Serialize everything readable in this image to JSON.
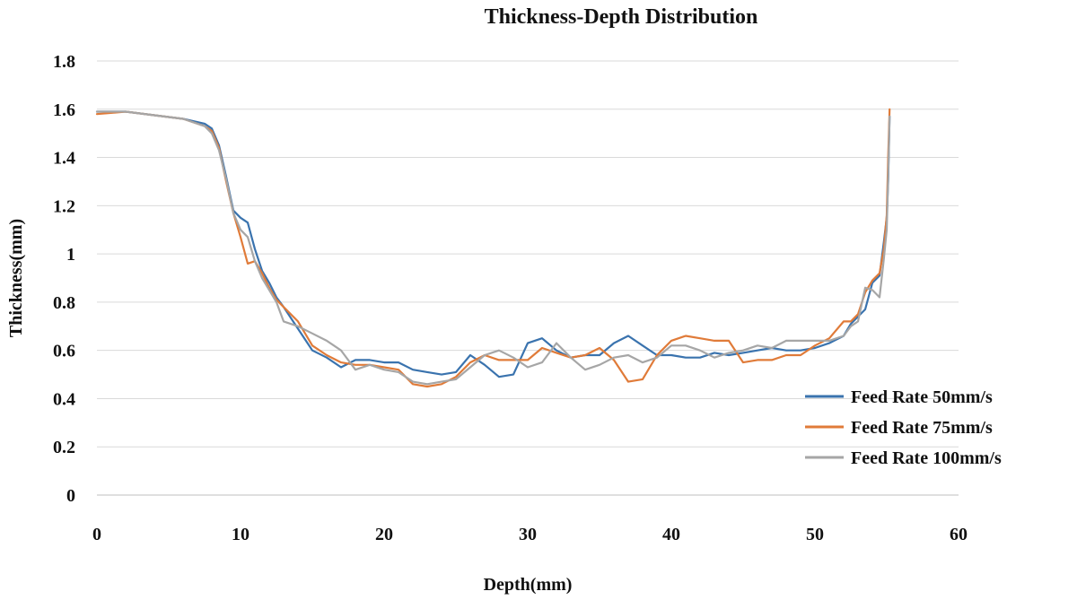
{
  "chart_data": {
    "type": "line",
    "title": "Thickness-Depth Distribution",
    "xlabel": "Depth(mm)",
    "ylabel": "Thickness(mm)",
    "xlim": [
      0,
      60
    ],
    "ylim": [
      0,
      1.8
    ],
    "xticks": [
      0,
      10,
      20,
      30,
      40,
      50,
      60
    ],
    "yticks": [
      0,
      0.2,
      0.4,
      0.6,
      0.8,
      1,
      1.2,
      1.4,
      1.6,
      1.8
    ],
    "xtick_labels": [
      "0",
      "10",
      "20",
      "30",
      "40",
      "50",
      "60"
    ],
    "ytick_labels": [
      "0",
      "0.2",
      "0.4",
      "0.6",
      "0.8",
      "1",
      "1.2",
      "1.4",
      "1.6",
      "1.8"
    ],
    "grid": true,
    "legend_position": "bottom-right",
    "series": [
      {
        "name": "Feed Rate 50mm/s",
        "color": "#3a73ae",
        "x": [
          0,
          2,
          4,
          6,
          7.5,
          8,
          8.5,
          9,
          9.5,
          10,
          10.5,
          11,
          11.5,
          12,
          12.5,
          13,
          14,
          15,
          16,
          17,
          18,
          19,
          20,
          21,
          22,
          23,
          24,
          25,
          26,
          27,
          28,
          29,
          30,
          31,
          32,
          33,
          34,
          35,
          36,
          37,
          38,
          39,
          40,
          41,
          42,
          43,
          44,
          45,
          46,
          47,
          48,
          49,
          50,
          51,
          52,
          52.5,
          53,
          53.5,
          54,
          54.5,
          54.8,
          55,
          55.1,
          55.2
        ],
        "values": [
          1.59,
          1.59,
          1.575,
          1.56,
          1.54,
          1.52,
          1.45,
          1.32,
          1.18,
          1.15,
          1.13,
          1.02,
          0.93,
          0.88,
          0.82,
          0.78,
          0.69,
          0.6,
          0.57,
          0.53,
          0.56,
          0.56,
          0.55,
          0.55,
          0.52,
          0.51,
          0.5,
          0.51,
          0.58,
          0.54,
          0.49,
          0.5,
          0.63,
          0.65,
          0.6,
          0.57,
          0.58,
          0.58,
          0.63,
          0.66,
          0.62,
          0.58,
          0.58,
          0.57,
          0.57,
          0.59,
          0.58,
          0.59,
          0.6,
          0.61,
          0.6,
          0.6,
          0.61,
          0.63,
          0.66,
          0.71,
          0.74,
          0.77,
          0.88,
          0.91,
          1.05,
          1.15,
          1.3,
          1.57
        ]
      },
      {
        "name": "Feed Rate 75mm/s",
        "color": "#e07b39",
        "x": [
          0,
          2,
          4,
          6,
          7.5,
          8,
          8.5,
          9,
          9.5,
          10,
          10.5,
          11,
          11.5,
          12,
          12.5,
          13,
          14,
          15,
          16,
          17,
          18,
          19,
          20,
          21,
          22,
          23,
          24,
          25,
          26,
          27,
          28,
          29,
          30,
          31,
          32,
          33,
          34,
          35,
          36,
          37,
          38,
          39,
          40,
          41,
          42,
          43,
          44,
          45,
          46,
          47,
          48,
          49,
          50,
          51,
          52,
          52.5,
          53,
          53.5,
          54,
          54.5,
          54.8,
          55,
          55.1,
          55.2
        ],
        "values": [
          1.58,
          1.59,
          1.575,
          1.56,
          1.53,
          1.51,
          1.44,
          1.3,
          1.17,
          1.07,
          0.96,
          0.97,
          0.92,
          0.86,
          0.81,
          0.78,
          0.72,
          0.62,
          0.58,
          0.55,
          0.54,
          0.54,
          0.53,
          0.52,
          0.46,
          0.45,
          0.46,
          0.49,
          0.55,
          0.58,
          0.56,
          0.56,
          0.56,
          0.61,
          0.59,
          0.57,
          0.58,
          0.61,
          0.56,
          0.47,
          0.48,
          0.58,
          0.64,
          0.66,
          0.65,
          0.64,
          0.64,
          0.55,
          0.56,
          0.56,
          0.58,
          0.58,
          0.62,
          0.65,
          0.72,
          0.72,
          0.75,
          0.84,
          0.89,
          0.92,
          1.02,
          1.16,
          1.4,
          1.6
        ]
      },
      {
        "name": "Feed Rate 100mm/s",
        "color": "#a6a6a6",
        "x": [
          0,
          2,
          4,
          6,
          7.5,
          8,
          8.5,
          9,
          9.5,
          10,
          10.5,
          11,
          11.5,
          12,
          12.5,
          13,
          14,
          15,
          16,
          17,
          18,
          19,
          20,
          21,
          22,
          23,
          24,
          25,
          26,
          27,
          28,
          29,
          30,
          31,
          32,
          33,
          34,
          35,
          36,
          37,
          38,
          39,
          40,
          41,
          42,
          43,
          44,
          45,
          46,
          47,
          48,
          49,
          50,
          51,
          52,
          52.5,
          53,
          53.5,
          54,
          54.5,
          54.8,
          55,
          55.1,
          55.2
        ],
        "values": [
          1.59,
          1.59,
          1.575,
          1.56,
          1.53,
          1.5,
          1.43,
          1.31,
          1.17,
          1.1,
          1.07,
          0.97,
          0.9,
          0.85,
          0.8,
          0.72,
          0.7,
          0.67,
          0.64,
          0.6,
          0.52,
          0.54,
          0.52,
          0.51,
          0.47,
          0.46,
          0.47,
          0.48,
          0.53,
          0.58,
          0.6,
          0.57,
          0.53,
          0.55,
          0.63,
          0.57,
          0.52,
          0.54,
          0.57,
          0.58,
          0.55,
          0.57,
          0.62,
          0.62,
          0.6,
          0.57,
          0.59,
          0.6,
          0.62,
          0.61,
          0.64,
          0.64,
          0.64,
          0.64,
          0.66,
          0.7,
          0.72,
          0.86,
          0.85,
          0.82,
          0.98,
          1.1,
          1.32,
          1.57
        ]
      }
    ]
  }
}
